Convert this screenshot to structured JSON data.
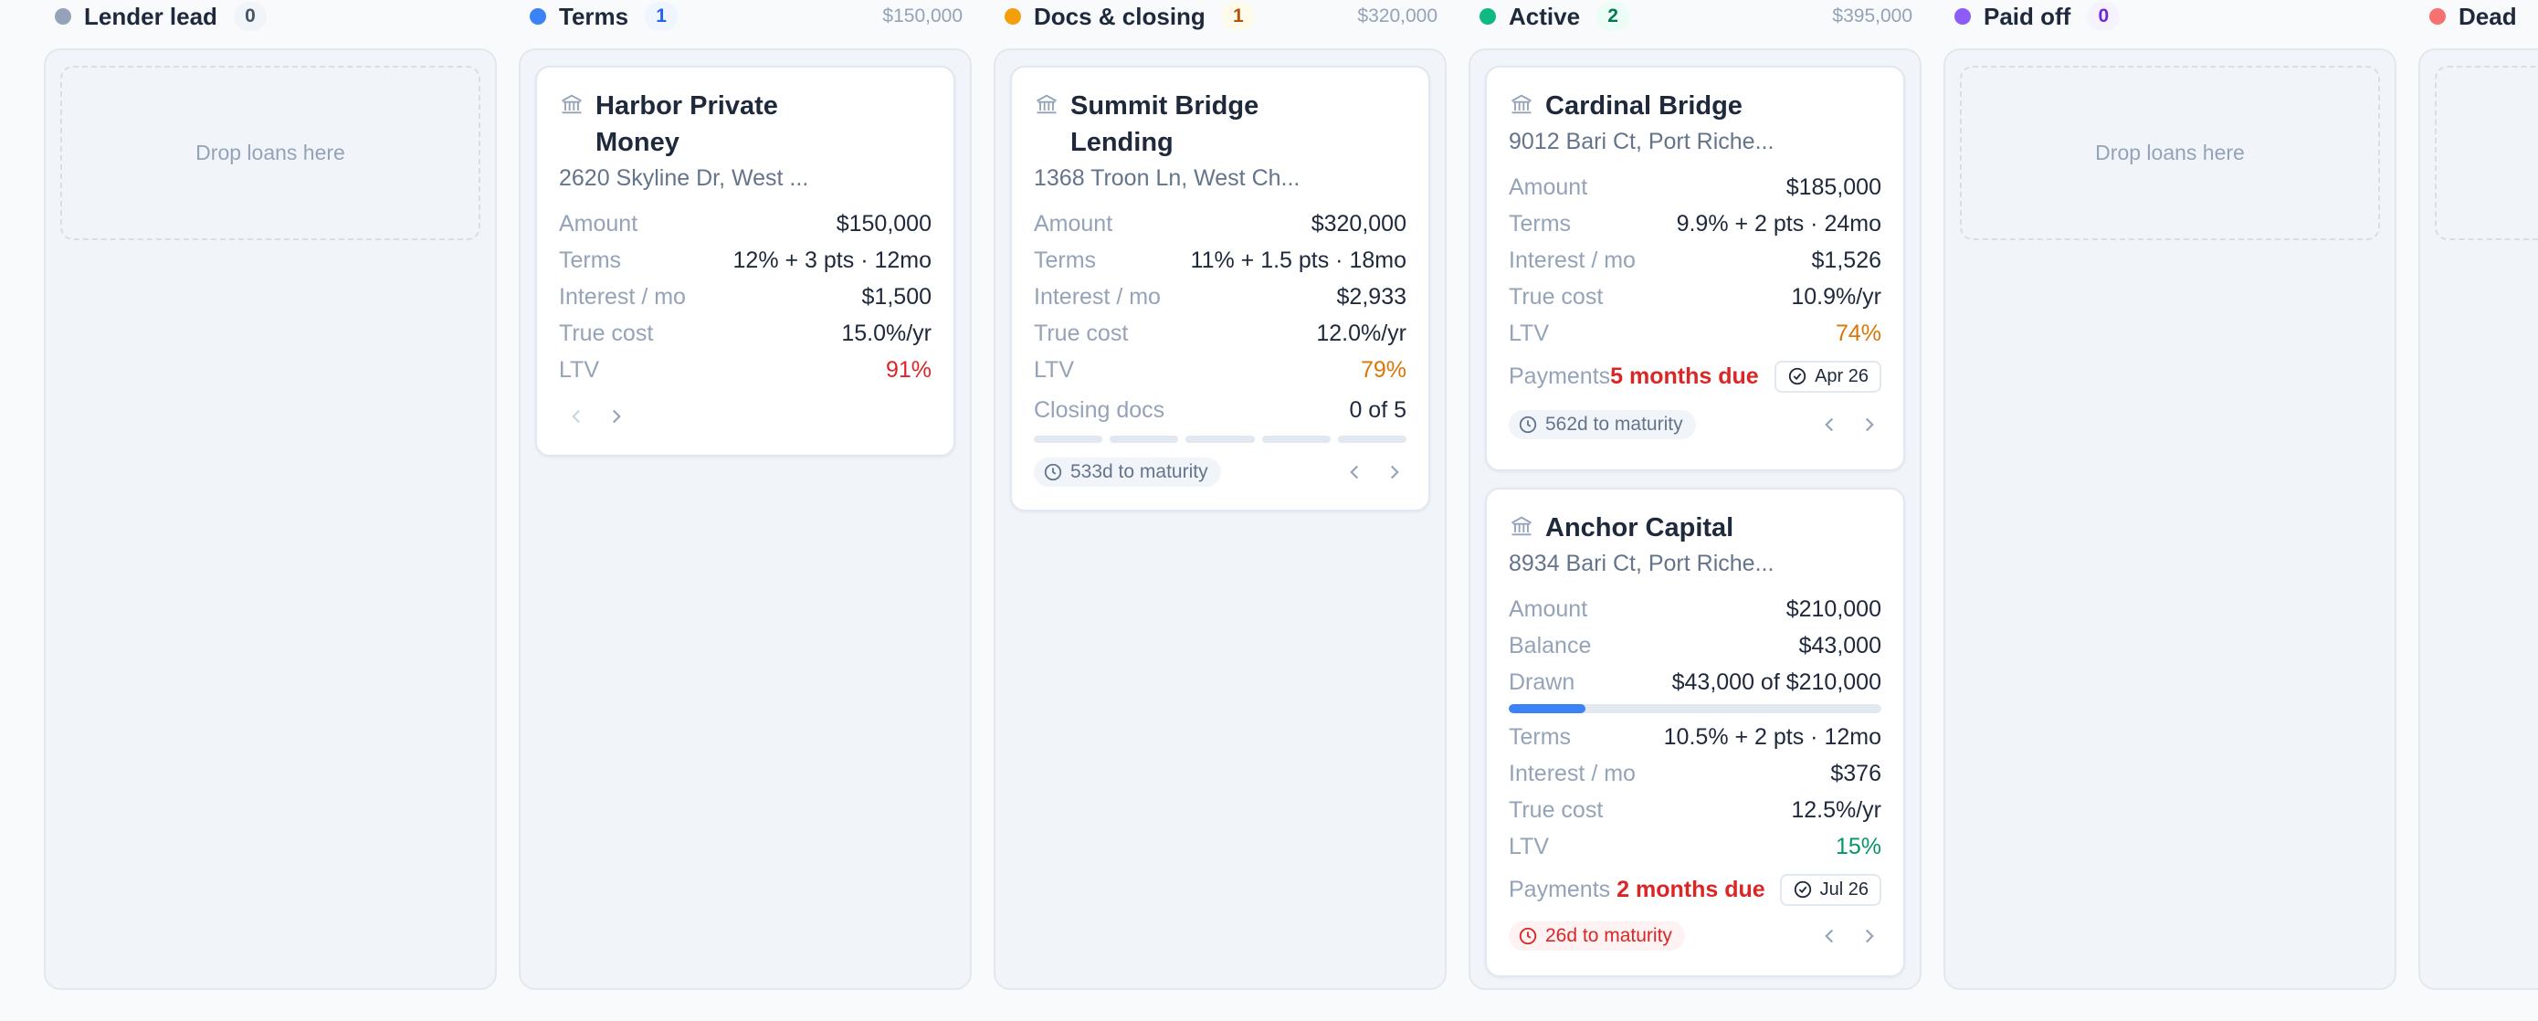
{
  "columns": [
    {
      "title": "Lender lead",
      "count": "0",
      "total": "",
      "color": "#94a3b8",
      "count_bg": "#f1f5f9",
      "count_fg": "#475569",
      "empty": "Drop loans here"
    },
    {
      "title": "Terms",
      "count": "1",
      "total": "$150,000",
      "color": "#3b82f6",
      "count_bg": "#eff6ff",
      "count_fg": "#2563eb"
    },
    {
      "title": "Docs & closing",
      "count": "1",
      "total": "$320,000",
      "color": "#f59e0b",
      "count_bg": "#fffbeb",
      "count_fg": "#b45309"
    },
    {
      "title": "Active",
      "count": "2",
      "total": "$395,000",
      "color": "#10b981",
      "count_bg": "#ecfdf5",
      "count_fg": "#047857"
    },
    {
      "title": "Paid off",
      "count": "0",
      "total": "",
      "color": "#8b5cf6",
      "count_bg": "#f5f3ff",
      "count_fg": "#6d28d9",
      "empty": "Drop loans here"
    },
    {
      "title": "Dead",
      "count": "",
      "total": "",
      "color": "#f87171",
      "count_bg": "#fef2f2",
      "count_fg": "#b91c1c"
    }
  ],
  "labels": {
    "amount": "Amount",
    "terms": "Terms",
    "interest": "Interest / mo",
    "true_cost": "True cost",
    "ltv": "LTV",
    "closing_docs": "Closing docs",
    "balance": "Balance",
    "drawn": "Drawn",
    "payments": "Payments"
  },
  "cards": {
    "harbor": {
      "title_line1": "Harbor Private",
      "title_line2": "Money",
      "address": "2620 Skyline Dr, West ...",
      "amount": "$150,000",
      "terms": "12% + 3 pts · 12mo",
      "interest": "$1,500",
      "true_cost": "15.0%/yr",
      "ltv": "91%"
    },
    "summit": {
      "title_line1": "Summit Bridge",
      "title_line2": "Lending",
      "address": "1368 Troon Ln, West Ch...",
      "amount": "$320,000",
      "terms": "11% + 1.5 pts · 18mo",
      "interest": "$2,933",
      "true_cost": "12.0%/yr",
      "ltv": "79%",
      "closing_docs": "0 of 5",
      "closing_docs_done": 0,
      "closing_docs_total": 5,
      "maturity": "533d to maturity"
    },
    "cardinal": {
      "title": "Cardinal Bridge",
      "address": "9012 Bari Ct, Port Riche...",
      "amount": "$185,000",
      "terms": "9.9% + 2 pts · 24mo",
      "interest": "$1,526",
      "true_cost": "10.9%/yr",
      "ltv": "74%",
      "payments_due": "5 months due",
      "next_date": "Apr 26",
      "maturity": "562d to maturity"
    },
    "anchor": {
      "title": "Anchor Capital",
      "address": "8934 Bari Ct, Port Riche...",
      "amount": "$210,000",
      "balance": "$43,000",
      "drawn": "$43,000 of $210,000",
      "drawn_fraction": 0.2048,
      "terms": "10.5% + 2 pts · 12mo",
      "interest": "$376",
      "true_cost": "12.5%/yr",
      "ltv": "15%",
      "payments_due": "2 months due",
      "next_date": "Jul 26",
      "maturity": "26d to maturity"
    }
  }
}
